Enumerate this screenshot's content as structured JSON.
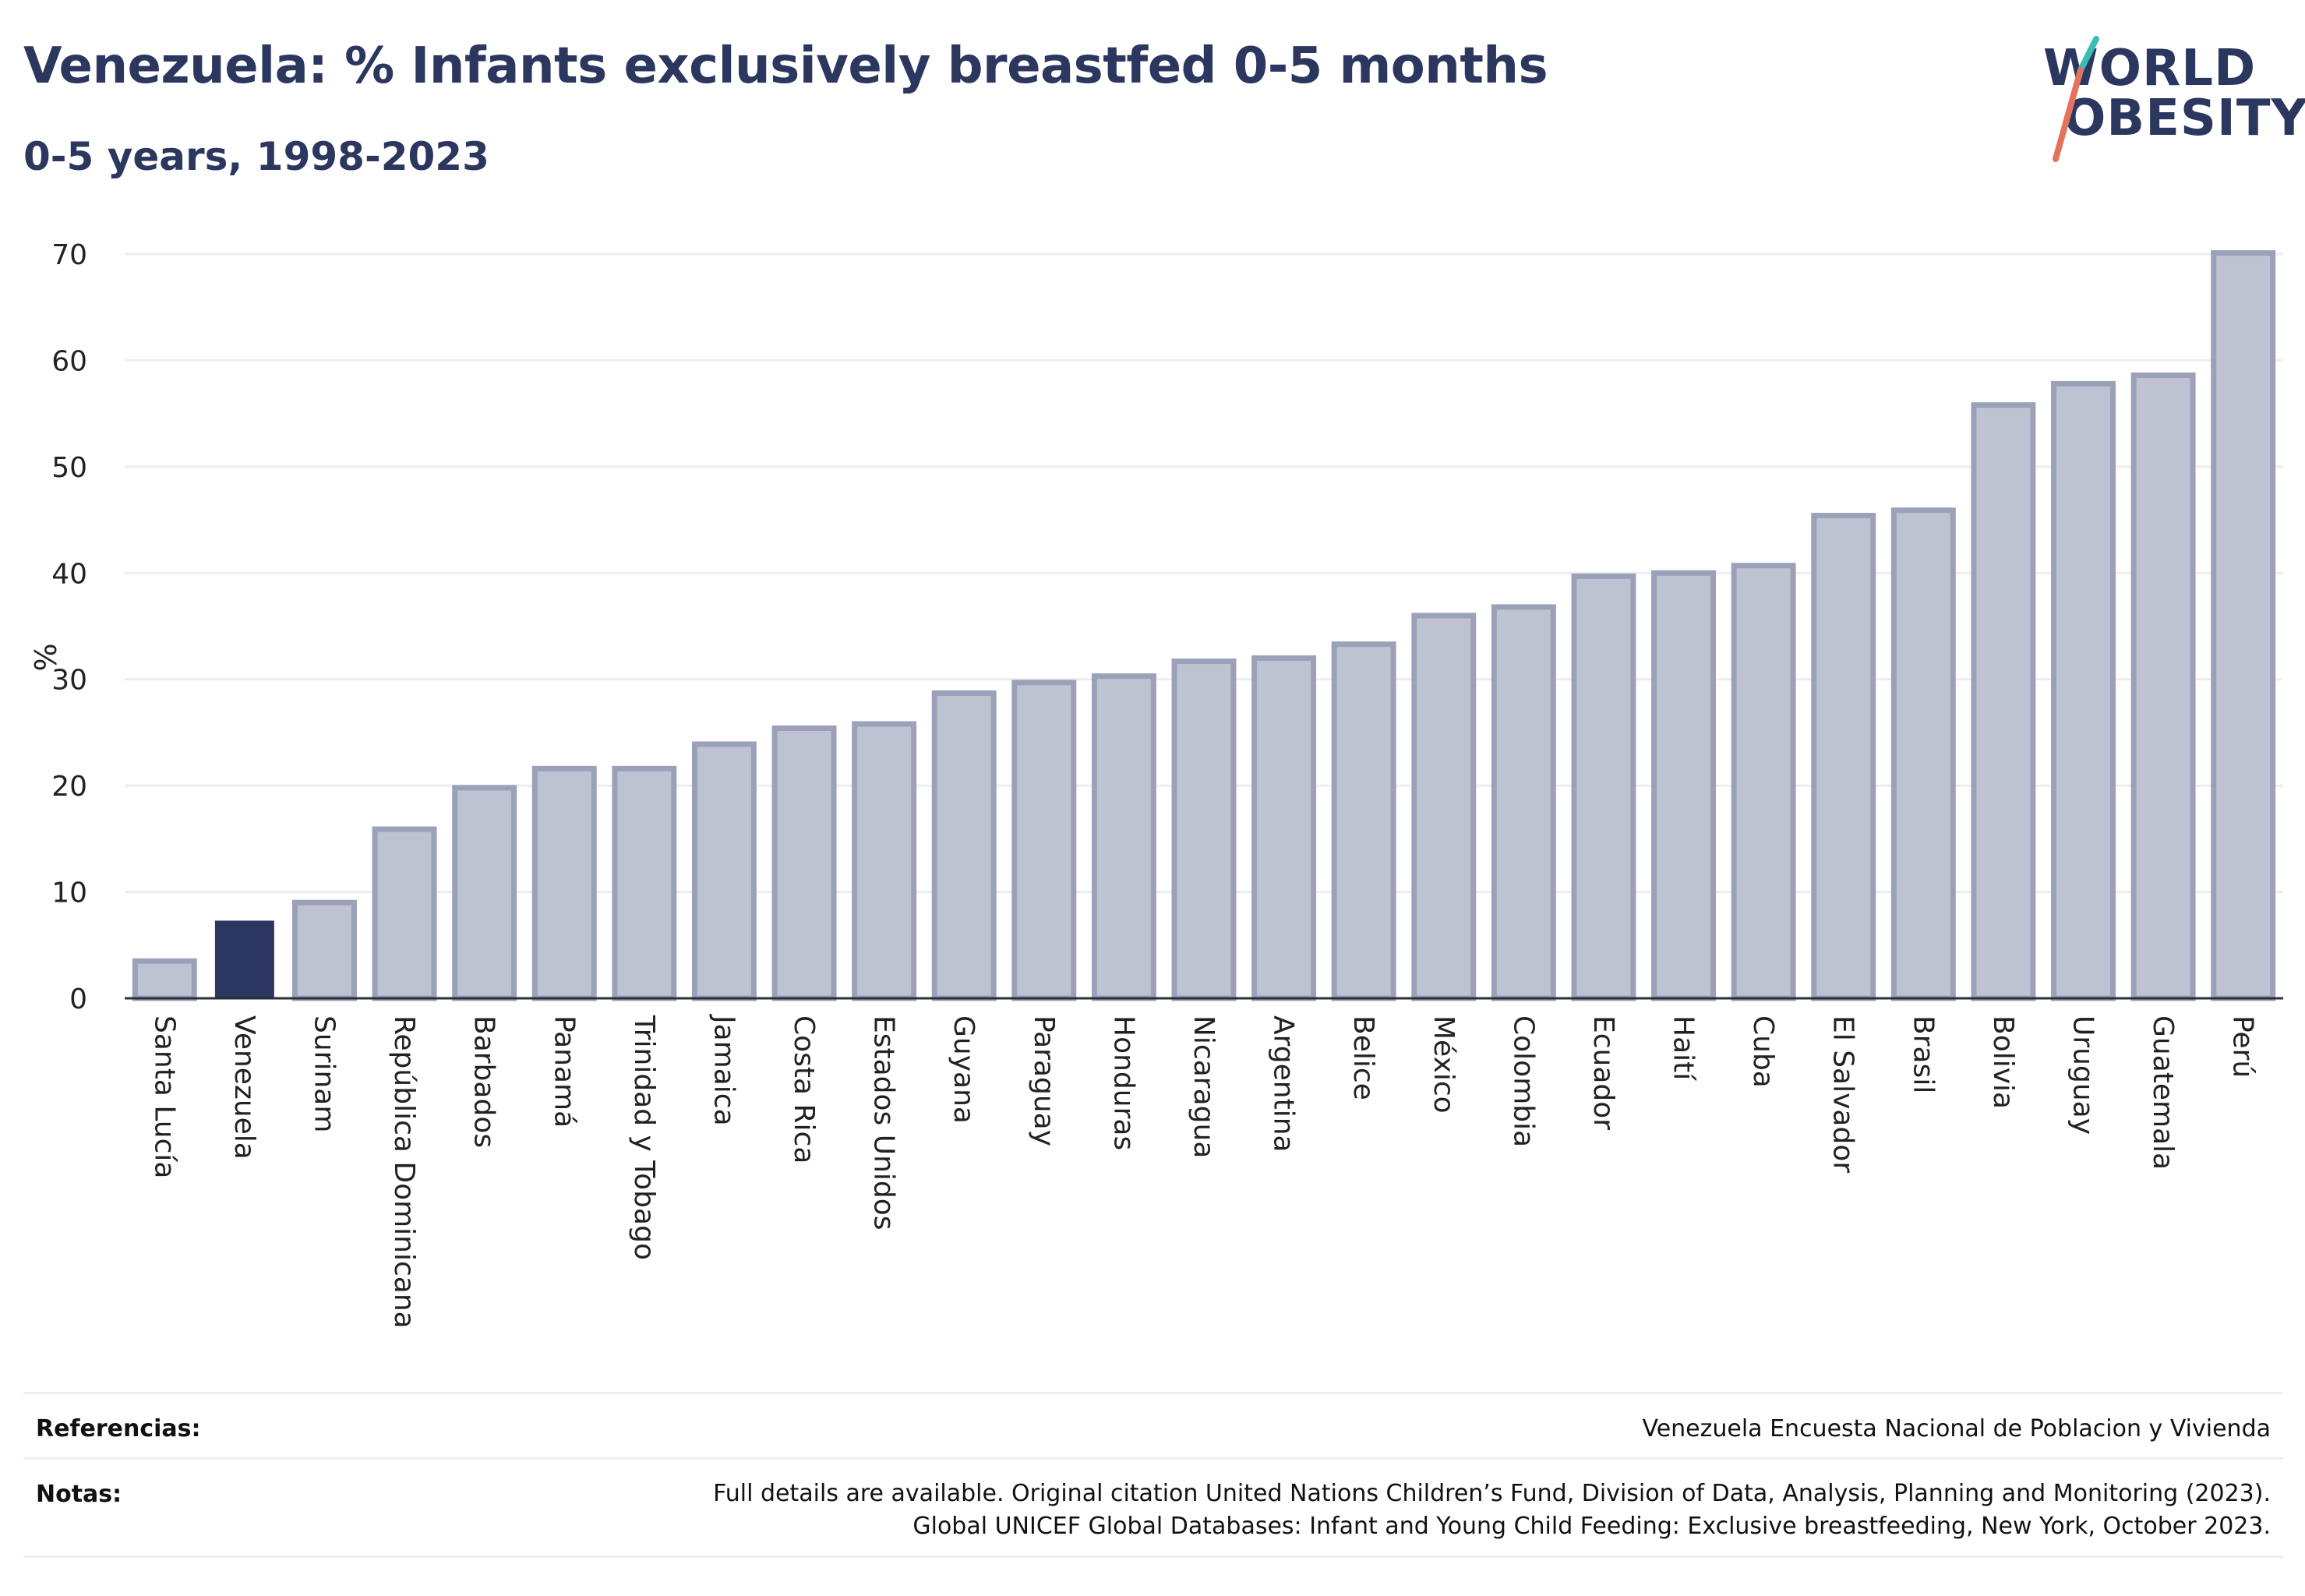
{
  "header": {
    "title": "Venezuela: % Infants exclusively breastfed 0-5 months",
    "subtitle": "0-5 years, 1998-2023"
  },
  "logo": {
    "line1": "WORLD",
    "line2": "OBESITY",
    "colors": {
      "text": "#2b375f",
      "slash_top": "#3cbcb3",
      "slash_bottom": "#e4735e"
    }
  },
  "chart_data": {
    "type": "bar",
    "ylabel": "%",
    "ylim": [
      0,
      70
    ],
    "yticks": [
      0,
      10,
      20,
      30,
      40,
      50,
      60,
      70
    ],
    "grid": true,
    "highlight": "Venezuela",
    "colors": {
      "bar": "#bfc3d1",
      "bar_border": "#9aa1b8",
      "highlight": "#2b375f",
      "axis": "#2b2f3a",
      "grid": "#eceef3"
    },
    "categories": [
      "Santa Lucía",
      "Venezuela",
      "Surinam",
      "República Dominicana",
      "Barbados",
      "Panamá",
      "Trinidad y Tobago",
      "Jamaica",
      "Costa Rica",
      "Estados Unidos",
      "Guyana",
      "Paraguay",
      "Honduras",
      "Nicaragua",
      "Argentina",
      "Belice",
      "México",
      "Colombia",
      "Ecuador",
      "Haití",
      "Cuba",
      "El Salvador",
      "Brasil",
      "Bolivia",
      "Uruguay",
      "Guatemala",
      "Perú"
    ],
    "values": [
      3.5,
      7.3,
      9.0,
      15.9,
      19.8,
      21.6,
      21.6,
      23.9,
      25.4,
      25.8,
      28.7,
      29.7,
      30.3,
      31.7,
      32.0,
      33.3,
      36.0,
      36.8,
      39.7,
      40.0,
      40.7,
      45.4,
      45.9,
      55.8,
      57.8,
      58.6,
      70.1
    ]
  },
  "footer": {
    "references_label": "Referencias:",
    "references_text": "Venezuela Encuesta Nacional de Poblacion y Vivienda",
    "notes_label": "Notas:",
    "notes_line1": "Full details are available. Original citation United Nations Children’s Fund, Division of Data, Analysis, Planning and Monitoring (2023).",
    "notes_line2": "Global UNICEF Global Databases: Infant and Young Child Feeding: Exclusive breastfeeding, New York, October 2023."
  }
}
